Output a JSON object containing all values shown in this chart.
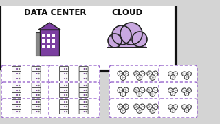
{
  "background_color": "#d4d4d4",
  "panel_bg": "#ffffff",
  "panel_border": "#111111",
  "title_text_left": "DATA CENTER",
  "title_text_right": "CLOUD",
  "title_fontsize": 8.5,
  "title_color": "#111111",
  "purple": "#7B3FA0",
  "purple_light": "#c9a8e0",
  "dashed_border": "#9966CC",
  "server_edge": "#444444",
  "node_edge": "#444444"
}
